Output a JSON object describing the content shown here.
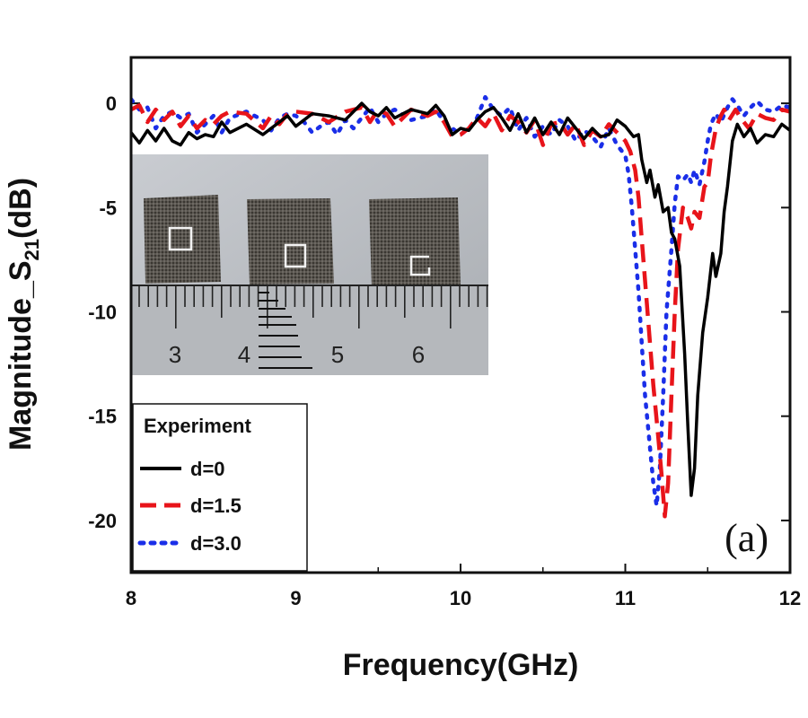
{
  "chart_data": {
    "type": "line",
    "title": "",
    "panel_label": "(a)",
    "xlabel": "Frequency(GHz)",
    "ylabel": {
      "main": "Magnitude_S",
      "sub": "21",
      "suffix": "(dB)"
    },
    "xlim": [
      8,
      12
    ],
    "ylim": [
      -22.5,
      2.2
    ],
    "x_ticks": [
      {
        "value": 8,
        "label": "8"
      },
      {
        "value": 9,
        "label": "9"
      },
      {
        "value": 10,
        "label": "10"
      },
      {
        "value": 11,
        "label": "11"
      },
      {
        "value": 12,
        "label": "12"
      }
    ],
    "y_ticks": [
      {
        "value": 0,
        "label": "0"
      },
      {
        "value": -5,
        "label": "-5"
      },
      {
        "value": -10,
        "label": "-10"
      },
      {
        "value": -15,
        "label": "-15"
      },
      {
        "value": -20,
        "label": "-20"
      }
    ],
    "legend": {
      "title": "Experiment",
      "placement": "bottom-left"
    },
    "series": [
      {
        "name": "d=0",
        "style": "solid",
        "color": "#000000",
        "points": [
          [
            8.0,
            -1.4
          ],
          [
            8.05,
            -1.9
          ],
          [
            8.1,
            -1.3
          ],
          [
            8.15,
            -1.8
          ],
          [
            8.2,
            -1.2
          ],
          [
            8.25,
            -1.8
          ],
          [
            8.3,
            -2.0
          ],
          [
            8.35,
            -1.4
          ],
          [
            8.4,
            -1.7
          ],
          [
            8.45,
            -1.5
          ],
          [
            8.5,
            -1.6
          ],
          [
            8.55,
            -0.9
          ],
          [
            8.6,
            -1.4
          ],
          [
            8.7,
            -1.0
          ],
          [
            8.8,
            -1.5
          ],
          [
            8.85,
            -1.2
          ],
          [
            8.9,
            -0.9
          ],
          [
            8.95,
            -0.6
          ],
          [
            9.0,
            -1.1
          ],
          [
            9.1,
            -0.5
          ],
          [
            9.2,
            -0.6
          ],
          [
            9.3,
            -0.8
          ],
          [
            9.4,
            0.0
          ],
          [
            9.45,
            -0.4
          ],
          [
            9.5,
            -0.6
          ],
          [
            9.55,
            -0.2
          ],
          [
            9.6,
            -0.7
          ],
          [
            9.7,
            -0.3
          ],
          [
            9.8,
            -0.5
          ],
          [
            9.85,
            -0.1
          ],
          [
            9.9,
            -0.6
          ],
          [
            9.95,
            -1.5
          ],
          [
            10.0,
            -1.2
          ],
          [
            10.05,
            -1.3
          ],
          [
            10.1,
            -0.8
          ],
          [
            10.15,
            -0.4
          ],
          [
            10.2,
            -0.2
          ],
          [
            10.25,
            -0.7
          ],
          [
            10.3,
            -1.3
          ],
          [
            10.35,
            -0.5
          ],
          [
            10.4,
            -1.4
          ],
          [
            10.45,
            -0.7
          ],
          [
            10.5,
            -1.5
          ],
          [
            10.55,
            -0.9
          ],
          [
            10.6,
            -1.5
          ],
          [
            10.65,
            -0.7
          ],
          [
            10.7,
            -1.2
          ],
          [
            10.75,
            -1.7
          ],
          [
            10.8,
            -1.2
          ],
          [
            10.85,
            -1.6
          ],
          [
            10.9,
            -1.5
          ],
          [
            10.95,
            -0.8
          ],
          [
            11.0,
            -1.1
          ],
          [
            11.05,
            -1.6
          ],
          [
            11.08,
            -1.5
          ],
          [
            11.1,
            -2.7
          ],
          [
            11.13,
            -3.8
          ],
          [
            11.15,
            -3.2
          ],
          [
            11.18,
            -4.5
          ],
          [
            11.2,
            -3.9
          ],
          [
            11.23,
            -5.2
          ],
          [
            11.26,
            -5.0
          ],
          [
            11.28,
            -6.2
          ],
          [
            11.3,
            -6.5
          ],
          [
            11.33,
            -7.8
          ],
          [
            11.36,
            -12.0
          ],
          [
            11.38,
            -15.5
          ],
          [
            11.4,
            -18.8
          ],
          [
            11.42,
            -17.5
          ],
          [
            11.44,
            -14.0
          ],
          [
            11.47,
            -11.0
          ],
          [
            11.5,
            -9.3
          ],
          [
            11.53,
            -7.2
          ],
          [
            11.55,
            -8.3
          ],
          [
            11.58,
            -7.2
          ],
          [
            11.6,
            -5.2
          ],
          [
            11.62,
            -4.0
          ],
          [
            11.65,
            -1.8
          ],
          [
            11.68,
            -1.0
          ],
          [
            11.72,
            -1.6
          ],
          [
            11.76,
            -1.2
          ],
          [
            11.8,
            -1.9
          ],
          [
            11.85,
            -1.5
          ],
          [
            11.9,
            -1.6
          ],
          [
            11.95,
            -1.0
          ],
          [
            12.0,
            -1.3
          ]
        ]
      },
      {
        "name": "d=1.5",
        "style": "dashed",
        "color": "#e8141a",
        "points": [
          [
            8.0,
            -0.3
          ],
          [
            8.05,
            -0.1
          ],
          [
            8.1,
            -0.9
          ],
          [
            8.15,
            -0.3
          ],
          [
            8.2,
            -0.8
          ],
          [
            8.25,
            -0.4
          ],
          [
            8.3,
            -1.1
          ],
          [
            8.35,
            -0.6
          ],
          [
            8.4,
            -1.2
          ],
          [
            8.45,
            -0.8
          ],
          [
            8.5,
            -1.0
          ],
          [
            8.55,
            -0.6
          ],
          [
            8.6,
            -0.4
          ],
          [
            8.7,
            -0.5
          ],
          [
            8.8,
            -1.2
          ],
          [
            8.85,
            -0.6
          ],
          [
            8.9,
            -1.0
          ],
          [
            8.95,
            -0.5
          ],
          [
            9.0,
            -0.4
          ],
          [
            9.1,
            -0.5
          ],
          [
            9.2,
            -0.9
          ],
          [
            9.3,
            -0.4
          ],
          [
            9.4,
            -0.2
          ],
          [
            9.45,
            -0.9
          ],
          [
            9.5,
            -0.3
          ],
          [
            9.55,
            -0.5
          ],
          [
            9.6,
            -1.1
          ],
          [
            9.7,
            -0.3
          ],
          [
            9.8,
            -0.6
          ],
          [
            9.85,
            -0.4
          ],
          [
            9.9,
            -0.9
          ],
          [
            9.95,
            -1.6
          ],
          [
            10.0,
            -1.5
          ],
          [
            10.05,
            -1.2
          ],
          [
            10.1,
            -0.7
          ],
          [
            10.15,
            -1.1
          ],
          [
            10.2,
            -0.5
          ],
          [
            10.25,
            -1.3
          ],
          [
            10.3,
            -0.6
          ],
          [
            10.35,
            -0.9
          ],
          [
            10.4,
            -1.4
          ],
          [
            10.45,
            -0.8
          ],
          [
            10.5,
            -2.0
          ],
          [
            10.55,
            -1.0
          ],
          [
            10.6,
            -0.9
          ],
          [
            10.65,
            -1.5
          ],
          [
            10.7,
            -1.0
          ],
          [
            10.75,
            -2.0
          ],
          [
            10.8,
            -1.3
          ],
          [
            10.85,
            -1.6
          ],
          [
            10.9,
            -1.0
          ],
          [
            10.95,
            -1.4
          ],
          [
            11.0,
            -1.8
          ],
          [
            11.03,
            -2.3
          ],
          [
            11.06,
            -3.2
          ],
          [
            11.08,
            -4.5
          ],
          [
            11.1,
            -6.5
          ],
          [
            11.12,
            -8.5
          ],
          [
            11.15,
            -11.5
          ],
          [
            11.17,
            -13.5
          ],
          [
            11.2,
            -16.0
          ],
          [
            11.22,
            -17.8
          ],
          [
            11.24,
            -19.8
          ],
          [
            11.26,
            -18.2
          ],
          [
            11.28,
            -14.0
          ],
          [
            11.3,
            -10.0
          ],
          [
            11.32,
            -7.0
          ],
          [
            11.35,
            -5.0
          ],
          [
            11.38,
            -5.5
          ],
          [
            11.4,
            -6.0
          ],
          [
            11.42,
            -5.2
          ],
          [
            11.45,
            -5.5
          ],
          [
            11.48,
            -4.0
          ],
          [
            11.5,
            -3.8
          ],
          [
            11.52,
            -2.5
          ],
          [
            11.55,
            -1.2
          ],
          [
            11.58,
            -0.6
          ],
          [
            11.6,
            -0.3
          ],
          [
            11.63,
            -0.8
          ],
          [
            11.67,
            -0.3
          ],
          [
            11.7,
            -0.7
          ],
          [
            11.75,
            -1.2
          ],
          [
            11.8,
            -0.5
          ],
          [
            11.85,
            -0.7
          ],
          [
            11.9,
            -0.8
          ],
          [
            11.95,
            -0.3
          ],
          [
            12.0,
            -0.4
          ]
        ]
      },
      {
        "name": "d=3.0",
        "style": "dotted",
        "color": "#1a2ee8",
        "points": [
          [
            8.0,
            0.2
          ],
          [
            8.05,
            -0.3
          ],
          [
            8.1,
            -0.2
          ],
          [
            8.15,
            -1.2
          ],
          [
            8.2,
            -0.6
          ],
          [
            8.25,
            -0.4
          ],
          [
            8.3,
            -0.7
          ],
          [
            8.35,
            -0.5
          ],
          [
            8.4,
            -1.4
          ],
          [
            8.45,
            -1.0
          ],
          [
            8.5,
            -0.6
          ],
          [
            8.55,
            -1.4
          ],
          [
            8.6,
            -0.7
          ],
          [
            8.7,
            -0.4
          ],
          [
            8.8,
            -0.8
          ],
          [
            8.85,
            -1.3
          ],
          [
            8.9,
            -0.7
          ],
          [
            8.95,
            -0.5
          ],
          [
            9.0,
            -0.6
          ],
          [
            9.05,
            -0.9
          ],
          [
            9.1,
            -1.4
          ],
          [
            9.15,
            -1.1
          ],
          [
            9.2,
            -0.9
          ],
          [
            9.25,
            -1.5
          ],
          [
            9.3,
            -0.8
          ],
          [
            9.35,
            -1.2
          ],
          [
            9.4,
            -0.7
          ],
          [
            9.45,
            -0.2
          ],
          [
            9.5,
            -0.9
          ],
          [
            9.55,
            -0.5
          ],
          [
            9.6,
            -0.3
          ],
          [
            9.7,
            -0.8
          ],
          [
            9.8,
            -0.6
          ],
          [
            9.85,
            -0.3
          ],
          [
            9.9,
            -0.9
          ],
          [
            9.95,
            -1.2
          ],
          [
            10.0,
            -1.5
          ],
          [
            10.05,
            -1.2
          ],
          [
            10.1,
            -0.7
          ],
          [
            10.15,
            0.3
          ],
          [
            10.2,
            -0.3
          ],
          [
            10.25,
            -0.6
          ],
          [
            10.3,
            -0.2
          ],
          [
            10.35,
            -1.3
          ],
          [
            10.4,
            -0.7
          ],
          [
            10.45,
            -1.6
          ],
          [
            10.5,
            -1.1
          ],
          [
            10.55,
            -1.5
          ],
          [
            10.6,
            -0.8
          ],
          [
            10.65,
            -1.1
          ],
          [
            10.7,
            -1.8
          ],
          [
            10.75,
            -1.3
          ],
          [
            10.8,
            -1.6
          ],
          [
            10.85,
            -2.1
          ],
          [
            10.9,
            -1.2
          ],
          [
            10.95,
            -2.0
          ],
          [
            11.0,
            -2.5
          ],
          [
            11.02,
            -3.4
          ],
          [
            11.04,
            -5.0
          ],
          [
            11.06,
            -7.0
          ],
          [
            11.08,
            -9.0
          ],
          [
            11.1,
            -11.5
          ],
          [
            11.12,
            -14.0
          ],
          [
            11.15,
            -16.5
          ],
          [
            11.17,
            -18.2
          ],
          [
            11.19,
            -19.3
          ],
          [
            11.21,
            -17.5
          ],
          [
            11.23,
            -14.0
          ],
          [
            11.25,
            -10.0
          ],
          [
            11.28,
            -7.0
          ],
          [
            11.3,
            -4.8
          ],
          [
            11.32,
            -3.5
          ],
          [
            11.35,
            -3.7
          ],
          [
            11.38,
            -3.4
          ],
          [
            11.4,
            -3.8
          ],
          [
            11.42,
            -3.2
          ],
          [
            11.45,
            -3.9
          ],
          [
            11.48,
            -2.8
          ],
          [
            11.5,
            -1.8
          ],
          [
            11.52,
            -1.0
          ],
          [
            11.55,
            -0.5
          ],
          [
            11.58,
            -0.9
          ],
          [
            11.62,
            -0.2
          ],
          [
            11.65,
            0.2
          ],
          [
            11.68,
            -0.1
          ],
          [
            11.72,
            -0.6
          ],
          [
            11.76,
            -0.2
          ],
          [
            11.8,
            0.1
          ],
          [
            11.85,
            -0.3
          ],
          [
            11.9,
            -0.4
          ],
          [
            11.95,
            -0.1
          ],
          [
            12.0,
            -0.2
          ]
        ]
      }
    ],
    "inset_photo": {
      "description_free": true,
      "ruler_numbers": [
        "3",
        "4",
        "5",
        "6"
      ]
    }
  }
}
